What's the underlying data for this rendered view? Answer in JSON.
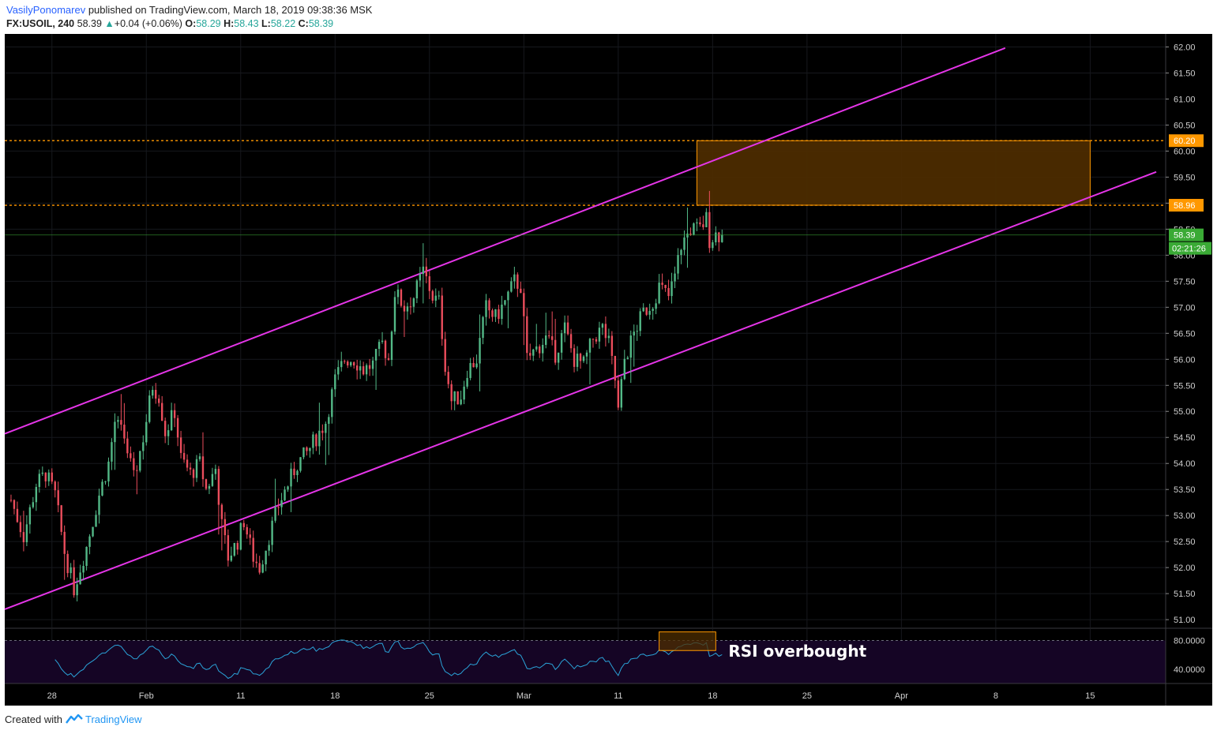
{
  "header": {
    "author": "VasilyPonomarev",
    "published_text": " published on TradingView.com, March 18, 2019 09:38:36 MSK"
  },
  "symbol_bar": {
    "symbol": "FX:USOIL, 240",
    "last": "58.39",
    "change_arrow": "▲",
    "change": "+0.04 (+0.06%)",
    "o_label": "O:",
    "o_value": "58.29",
    "h_label": "H:",
    "h_value": "58.43",
    "l_label": "L:",
    "l_value": "58.22",
    "c_label": "C:",
    "c_value": "58.39"
  },
  "footer": {
    "created_with": "Created with",
    "brand": "TradingView"
  },
  "colors": {
    "background": "#000000",
    "up_candle": "#53b987",
    "down_candle": "#eb4d5c",
    "channel": "#e535e8",
    "zone_fill": "#4e2d00",
    "zone_border": "#ff9800",
    "level_line": "#ff9800",
    "rsi_line": "#2aa3d8",
    "rsi_band": "#150525",
    "price_badge": "#3aaa35"
  },
  "chart_data": {
    "type": "candlestick",
    "symbol": "FX:USOIL",
    "interval": "240",
    "y_axis": {
      "min": 50.85,
      "max": 62.25,
      "ticks": [
        "62.00",
        "61.50",
        "61.00",
        "60.50",
        "60.00",
        "59.50",
        "59.00",
        "58.50",
        "58.00",
        "57.50",
        "57.00",
        "56.50",
        "56.00",
        "55.50",
        "55.00",
        "54.50",
        "54.00",
        "53.50",
        "53.00",
        "52.50",
        "52.00",
        "51.50",
        "51.00"
      ]
    },
    "x_axis": {
      "bar_index_range": [
        -2,
        367
      ],
      "ticks": [
        {
          "label": "28",
          "bar": 13
        },
        {
          "label": "Feb",
          "bar": 43
        },
        {
          "label": "11",
          "bar": 73
        },
        {
          "label": "18",
          "bar": 103
        },
        {
          "label": "25",
          "bar": 133
        },
        {
          "label": "Mar",
          "bar": 163
        },
        {
          "label": "11",
          "bar": 193
        },
        {
          "label": "18",
          "bar": 223
        },
        {
          "label": "25",
          "bar": 253
        },
        {
          "label": "Apr",
          "bar": 283
        },
        {
          "label": "8",
          "bar": 313
        },
        {
          "label": "15",
          "bar": 343
        }
      ]
    },
    "keypoints": [
      [
        0,
        53.3
      ],
      [
        4,
        52.6
      ],
      [
        8,
        53.6
      ],
      [
        11,
        53.8
      ],
      [
        14,
        53.4
      ],
      [
        17,
        52.3
      ],
      [
        20,
        51.6
      ],
      [
        24,
        52.4
      ],
      [
        28,
        53.4
      ],
      [
        31,
        54.0
      ],
      [
        33,
        54.8
      ],
      [
        36,
        54.5
      ],
      [
        39,
        53.7
      ],
      [
        42,
        54.5
      ],
      [
        45,
        55.5
      ],
      [
        47,
        55.3
      ],
      [
        49,
        54.6
      ],
      [
        52,
        55.0
      ],
      [
        54,
        54.1
      ],
      [
        57,
        53.8
      ],
      [
        60,
        54.0
      ],
      [
        62,
        53.5
      ],
      [
        65,
        53.9
      ],
      [
        67,
        52.8
      ],
      [
        69,
        52.2
      ],
      [
        72,
        52.5
      ],
      [
        74,
        52.9
      ],
      [
        77,
        52.2
      ],
      [
        79,
        52.0
      ],
      [
        82,
        52.6
      ],
      [
        85,
        53.2
      ],
      [
        88,
        53.6
      ],
      [
        91,
        54.0
      ],
      [
        94,
        54.2
      ],
      [
        97,
        54.5
      ],
      [
        100,
        54.8
      ],
      [
        103,
        55.6
      ],
      [
        106,
        56.0
      ],
      [
        109,
        56.0
      ],
      [
        112,
        55.8
      ],
      [
        115,
        55.9
      ],
      [
        118,
        56.3
      ],
      [
        120,
        56.0
      ],
      [
        122,
        57.3
      ],
      [
        125,
        57.0
      ],
      [
        128,
        57.2
      ],
      [
        131,
        57.7
      ],
      [
        134,
        57.2
      ],
      [
        136,
        57.1
      ],
      [
        138,
        55.9
      ],
      [
        140,
        55.2
      ],
      [
        143,
        55.3
      ],
      [
        145,
        55.8
      ],
      [
        148,
        56.0
      ],
      [
        151,
        57.0
      ],
      [
        154,
        56.8
      ],
      [
        157,
        57.1
      ],
      [
        160,
        57.5
      ],
      [
        162,
        57.4
      ],
      [
        164,
        56.0
      ],
      [
        167,
        56.2
      ],
      [
        170,
        56.4
      ],
      [
        173,
        56.1
      ],
      [
        176,
        56.6
      ],
      [
        179,
        56.0
      ],
      [
        182,
        55.9
      ],
      [
        185,
        56.4
      ],
      [
        188,
        56.6
      ],
      [
        190,
        56.3
      ],
      [
        192,
        55.6
      ],
      [
        193,
        55.0
      ],
      [
        195,
        56.0
      ],
      [
        198,
        56.5
      ],
      [
        201,
        56.9
      ],
      [
        204,
        57.1
      ],
      [
        206,
        57.4
      ],
      [
        209,
        57.2
      ],
      [
        211,
        57.6
      ],
      [
        213,
        58.2
      ],
      [
        216,
        58.5
      ],
      [
        219,
        58.5
      ],
      [
        221,
        58.7
      ],
      [
        222,
        58.3
      ],
      [
        224,
        58.4
      ],
      [
        226,
        58.39
      ]
    ],
    "last_bar": 226,
    "channel_upper": [
      [
        -2,
        54.57
      ],
      [
        316,
        61.98
      ]
    ],
    "channel_lower": [
      [
        -2,
        51.2
      ],
      [
        364,
        59.6
      ]
    ],
    "levels": [
      {
        "label": "60.20",
        "value": 60.2
      },
      {
        "label": "58.96",
        "value": 58.96
      }
    ],
    "target_zone": {
      "x_from_bar": 218,
      "x_to_bar": 343,
      "y_from": 58.96,
      "y_to": 60.2
    },
    "last_price": {
      "label": "58.39",
      "value": 58.39,
      "countdown": "02:21:26"
    },
    "rsi": {
      "axis_ticks": [
        "80.0000",
        "40.0000"
      ],
      "axis_values": [
        80,
        40
      ],
      "range": [
        20,
        96
      ],
      "overbought": 80,
      "oversold": 20,
      "annotation": "RSI overbought",
      "highlight": {
        "x_from_bar": 206,
        "x_to_bar": 224,
        "y_from": 66,
        "y_to": 92
      }
    }
  }
}
